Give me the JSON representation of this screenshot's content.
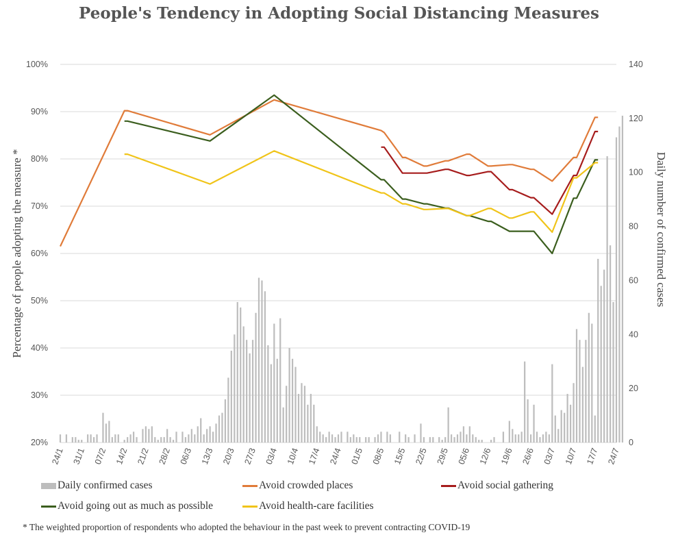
{
  "chart_data": {
    "type": "bar+line",
    "title": "People's Tendency in Adopting Social Distancing Measures",
    "ylabel_left": "Percentage of people adopting the measure *",
    "ylabel_right": "Daily number of confirmed cases",
    "y_left_range": [
      20,
      100
    ],
    "y_left_ticks": [
      "20%",
      "30%",
      "40%",
      "50%",
      "60%",
      "70%",
      "80%",
      "90%",
      "100%"
    ],
    "y_right_range": [
      0,
      140
    ],
    "y_right_ticks": [
      "0",
      "20",
      "40",
      "60",
      "80",
      "100",
      "120",
      "140"
    ],
    "x_range_days": [
      0,
      182
    ],
    "x_ticks": [
      {
        "label": "24/1",
        "day": 0
      },
      {
        "label": "31/1",
        "day": 7
      },
      {
        "label": "07/2",
        "day": 14
      },
      {
        "label": "14/2",
        "day": 21
      },
      {
        "label": "21/2",
        "day": 28
      },
      {
        "label": "28/2",
        "day": 35
      },
      {
        "label": "06/3",
        "day": 42
      },
      {
        "label": "13/3",
        "day": 49
      },
      {
        "label": "20/3",
        "day": 56
      },
      {
        "label": "27/3",
        "day": 63
      },
      {
        "label": "03/4",
        "day": 70
      },
      {
        "label": "10/4",
        "day": 77
      },
      {
        "label": "17/4",
        "day": 84
      },
      {
        "label": "24/4",
        "day": 91
      },
      {
        "label": "01/5",
        "day": 98
      },
      {
        "label": "08/5",
        "day": 105
      },
      {
        "label": "15/5",
        "day": 112
      },
      {
        "label": "22/5",
        "day": 119
      },
      {
        "label": "29/5",
        "day": 126
      },
      {
        "label": "05/6",
        "day": 133
      },
      {
        "label": "12/6",
        "day": 140
      },
      {
        "label": "19/6",
        "day": 147
      },
      {
        "label": "26/6",
        "day": 154
      },
      {
        "label": "03/7",
        "day": 161
      },
      {
        "label": "10/7",
        "day": 168
      },
      {
        "label": "17/7",
        "day": 175
      },
      {
        "label": "24/7",
        "day": 182
      }
    ],
    "bar_series": {
      "name": "Daily confirmed cases",
      "color": "#bdbdbd",
      "values": [
        [
          0,
          3
        ],
        [
          2,
          3
        ],
        [
          4,
          2
        ],
        [
          5,
          2
        ],
        [
          6,
          1
        ],
        [
          7,
          1
        ],
        [
          9,
          3
        ],
        [
          10,
          3
        ],
        [
          11,
          2
        ],
        [
          12,
          3
        ],
        [
          14,
          11
        ],
        [
          15,
          7
        ],
        [
          16,
          8
        ],
        [
          17,
          2
        ],
        [
          18,
          3
        ],
        [
          19,
          3
        ],
        [
          21,
          1
        ],
        [
          22,
          2
        ],
        [
          23,
          3
        ],
        [
          24,
          4
        ],
        [
          25,
          2
        ],
        [
          27,
          5
        ],
        [
          28,
          6
        ],
        [
          29,
          5
        ],
        [
          30,
          6
        ],
        [
          31,
          2
        ],
        [
          32,
          1
        ],
        [
          33,
          2
        ],
        [
          34,
          2
        ],
        [
          35,
          5
        ],
        [
          36,
          2
        ],
        [
          37,
          1
        ],
        [
          38,
          4
        ],
        [
          40,
          4
        ],
        [
          41,
          2
        ],
        [
          42,
          3
        ],
        [
          43,
          5
        ],
        [
          44,
          3
        ],
        [
          45,
          6
        ],
        [
          46,
          9
        ],
        [
          47,
          3
        ],
        [
          48,
          5
        ],
        [
          49,
          6
        ],
        [
          50,
          4
        ],
        [
          51,
          7
        ],
        [
          52,
          10
        ],
        [
          53,
          11
        ],
        [
          54,
          16
        ],
        [
          55,
          24
        ],
        [
          56,
          34
        ],
        [
          57,
          40
        ],
        [
          58,
          52
        ],
        [
          59,
          50
        ],
        [
          60,
          43
        ],
        [
          61,
          38
        ],
        [
          62,
          33
        ],
        [
          63,
          38
        ],
        [
          64,
          48
        ],
        [
          65,
          61
        ],
        [
          66,
          60
        ],
        [
          67,
          56
        ],
        [
          68,
          36
        ],
        [
          69,
          29
        ],
        [
          70,
          44
        ],
        [
          71,
          31
        ],
        [
          72,
          46
        ],
        [
          73,
          13
        ],
        [
          74,
          21
        ],
        [
          75,
          35
        ],
        [
          76,
          31
        ],
        [
          77,
          28
        ],
        [
          78,
          18
        ],
        [
          79,
          22
        ],
        [
          80,
          21
        ],
        [
          81,
          14
        ],
        [
          82,
          18
        ],
        [
          83,
          14
        ],
        [
          84,
          6
        ],
        [
          85,
          4
        ],
        [
          86,
          3
        ],
        [
          87,
          2
        ],
        [
          88,
          4
        ],
        [
          89,
          3
        ],
        [
          90,
          2
        ],
        [
          91,
          3
        ],
        [
          92,
          4
        ],
        [
          94,
          4
        ],
        [
          95,
          2
        ],
        [
          96,
          3
        ],
        [
          97,
          2
        ],
        [
          98,
          2
        ],
        [
          100,
          2
        ],
        [
          101,
          2
        ],
        [
          103,
          2
        ],
        [
          104,
          3
        ],
        [
          105,
          4
        ],
        [
          107,
          4
        ],
        [
          108,
          3
        ],
        [
          111,
          4
        ],
        [
          113,
          3
        ],
        [
          114,
          2
        ],
        [
          116,
          3
        ],
        [
          118,
          7
        ],
        [
          119,
          2
        ],
        [
          121,
          2
        ],
        [
          122,
          2
        ],
        [
          124,
          2
        ],
        [
          125,
          1
        ],
        [
          126,
          2
        ],
        [
          127,
          13
        ],
        [
          128,
          3
        ],
        [
          129,
          2
        ],
        [
          130,
          3
        ],
        [
          131,
          4
        ],
        [
          132,
          6
        ],
        [
          133,
          3
        ],
        [
          134,
          6
        ],
        [
          135,
          3
        ],
        [
          136,
          2
        ],
        [
          137,
          1
        ],
        [
          138,
          1
        ],
        [
          141,
          1
        ],
        [
          142,
          2
        ],
        [
          145,
          4
        ],
        [
          147,
          8
        ],
        [
          148,
          5
        ],
        [
          149,
          3
        ],
        [
          150,
          3
        ],
        [
          151,
          4
        ],
        [
          152,
          30
        ],
        [
          153,
          16
        ],
        [
          154,
          3
        ],
        [
          155,
          14
        ],
        [
          156,
          4
        ],
        [
          157,
          2
        ],
        [
          158,
          3
        ],
        [
          159,
          4
        ],
        [
          160,
          3
        ],
        [
          161,
          29
        ],
        [
          162,
          10
        ],
        [
          163,
          5
        ],
        [
          164,
          12
        ],
        [
          165,
          11
        ],
        [
          166,
          18
        ],
        [
          167,
          14
        ],
        [
          168,
          22
        ],
        [
          169,
          42
        ],
        [
          170,
          38
        ],
        [
          171,
          28
        ],
        [
          172,
          38
        ],
        [
          173,
          48
        ],
        [
          174,
          44
        ],
        [
          175,
          10
        ],
        [
          176,
          68
        ],
        [
          177,
          58
        ],
        [
          178,
          64
        ],
        [
          179,
          106
        ],
        [
          180,
          73
        ],
        [
          181,
          52
        ],
        [
          182,
          113
        ],
        [
          183,
          117
        ],
        [
          184,
          121
        ]
      ]
    },
    "series": [
      {
        "name": "Avoid crowded places",
        "color": "#e07b39",
        "points": [
          [
            0,
            61.5
          ],
          [
            21,
            90.2
          ],
          [
            22,
            90.2
          ],
          [
            49,
            85.1
          ],
          [
            70,
            92.5
          ],
          [
            105,
            86.0
          ],
          [
            106,
            85.6
          ],
          [
            112,
            80.3
          ],
          [
            113,
            80.3
          ],
          [
            119,
            78.5
          ],
          [
            120,
            78.5
          ],
          [
            126,
            79.6
          ],
          [
            127,
            79.6
          ],
          [
            133,
            81.0
          ],
          [
            134,
            81.0
          ],
          [
            140,
            78.5
          ],
          [
            141,
            78.5
          ],
          [
            147,
            78.8
          ],
          [
            148,
            78.8
          ],
          [
            154,
            77.8
          ],
          [
            155,
            77.8
          ],
          [
            161,
            75.3
          ],
          [
            168,
            80.3
          ],
          [
            169,
            80.3
          ],
          [
            175,
            88.8
          ],
          [
            176,
            88.8
          ]
        ]
      },
      {
        "name": "Avoid social gathering",
        "color": "#a61c1c",
        "points": [
          [
            105,
            82.5
          ],
          [
            106,
            82.5
          ],
          [
            112,
            77.0
          ],
          [
            113,
            77.0
          ],
          [
            119,
            77.0
          ],
          [
            120,
            77.0
          ],
          [
            126,
            77.8
          ],
          [
            127,
            77.8
          ],
          [
            133,
            76.5
          ],
          [
            134,
            76.5
          ],
          [
            140,
            77.3
          ],
          [
            141,
            77.3
          ],
          [
            147,
            73.5
          ],
          [
            148,
            73.5
          ],
          [
            154,
            71.8
          ],
          [
            155,
            71.8
          ],
          [
            161,
            68.3
          ],
          [
            168,
            76.5
          ],
          [
            169,
            76.5
          ],
          [
            175,
            85.8
          ],
          [
            176,
            85.8
          ]
        ]
      },
      {
        "name": "Avoid going out as much as possible",
        "color": "#3b5e1e",
        "points": [
          [
            21,
            88.0
          ],
          [
            22,
            88.0
          ],
          [
            49,
            83.8
          ],
          [
            70,
            93.5
          ],
          [
            105,
            75.6
          ],
          [
            106,
            75.6
          ],
          [
            112,
            71.5
          ],
          [
            113,
            71.5
          ],
          [
            119,
            70.5
          ],
          [
            120,
            70.5
          ],
          [
            126,
            69.6
          ],
          [
            127,
            69.6
          ],
          [
            133,
            68.0
          ],
          [
            134,
            68.0
          ],
          [
            140,
            66.8
          ],
          [
            141,
            66.8
          ],
          [
            147,
            64.7
          ],
          [
            148,
            64.7
          ],
          [
            154,
            64.7
          ],
          [
            155,
            64.7
          ],
          [
            161,
            60.0
          ],
          [
            168,
            71.7
          ],
          [
            169,
            71.7
          ],
          [
            175,
            79.8
          ],
          [
            176,
            79.8
          ]
        ]
      },
      {
        "name": "Avoid health-care facilities",
        "color": "#f0c419",
        "points": [
          [
            21,
            81.0
          ],
          [
            22,
            81.0
          ],
          [
            49,
            74.7
          ],
          [
            70,
            81.7
          ],
          [
            105,
            72.8
          ],
          [
            106,
            72.8
          ],
          [
            112,
            70.5
          ],
          [
            113,
            70.5
          ],
          [
            119,
            69.3
          ],
          [
            120,
            69.3
          ],
          [
            126,
            69.5
          ],
          [
            127,
            69.5
          ],
          [
            133,
            68.0
          ],
          [
            134,
            68.0
          ],
          [
            140,
            69.5
          ],
          [
            141,
            69.5
          ],
          [
            147,
            67.5
          ],
          [
            148,
            67.5
          ],
          [
            154,
            68.8
          ],
          [
            155,
            68.8
          ],
          [
            161,
            64.5
          ],
          [
            168,
            76.0
          ],
          [
            169,
            76.0
          ],
          [
            175,
            79.2
          ],
          [
            176,
            79.2
          ]
        ]
      }
    ],
    "legend_position": "bottom",
    "grid": "horizontal"
  },
  "footnote": "* The weighted proportion of respondents who adopted the behaviour in the past week to prevent contracting COVID-19"
}
